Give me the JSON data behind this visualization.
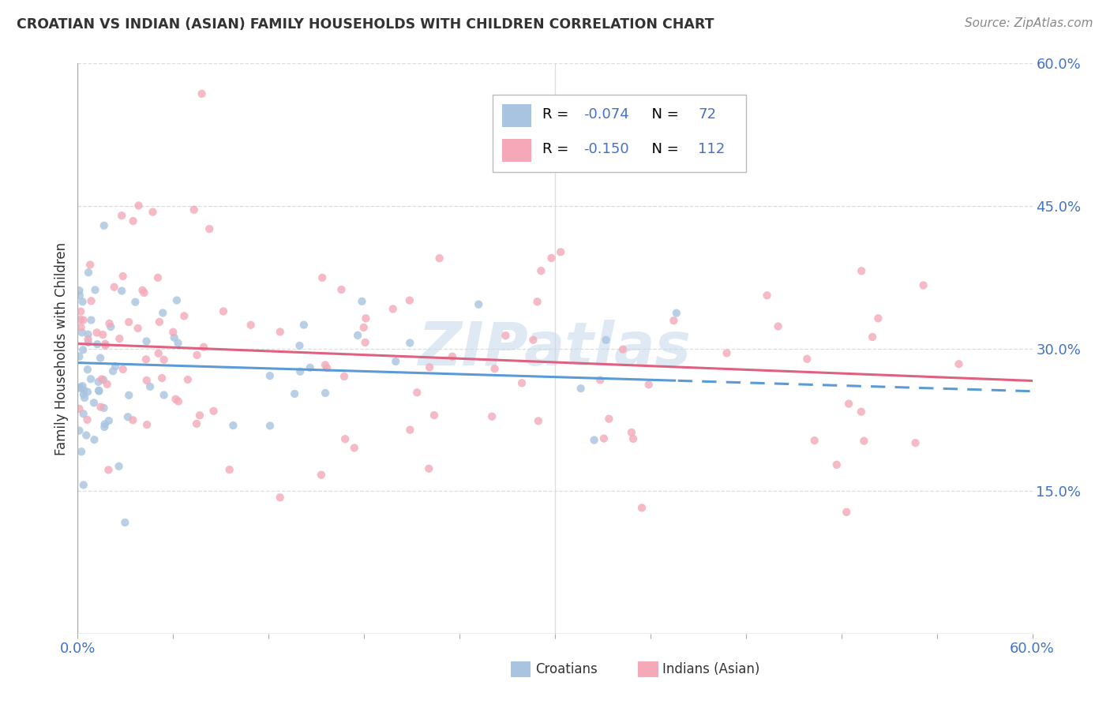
{
  "title": "CROATIAN VS INDIAN (ASIAN) FAMILY HOUSEHOLDS WITH CHILDREN CORRELATION CHART",
  "source": "Source: ZipAtlas.com",
  "ylabel": "Family Households with Children",
  "xlim": [
    0.0,
    0.6
  ],
  "ylim": [
    0.0,
    0.6
  ],
  "yticks": [
    0.0,
    0.15,
    0.3,
    0.45,
    0.6
  ],
  "ytick_labels_right": [
    "",
    "15.0%",
    "30.0%",
    "45.0%",
    "60.0%"
  ],
  "xtick_left_label": "0.0%",
  "xtick_right_label": "60.0%",
  "croatians_color": "#a8c4e0",
  "indians_color": "#f4a8b8",
  "trend_croatians_color": "#5b9bd5",
  "trend_indians_color": "#e06080",
  "R_croatians": -0.074,
  "N_croatians": 72,
  "R_indians": -0.15,
  "N_indians": 112,
  "watermark": "ZIPatlas",
  "legend_label_croatians": "Croatians",
  "legend_label_indians": "Indians (Asian)",
  "grid_color": "#dddddd",
  "border_color": "#aaaaaa",
  "label_color": "#4472c4",
  "text_color": "#333333"
}
